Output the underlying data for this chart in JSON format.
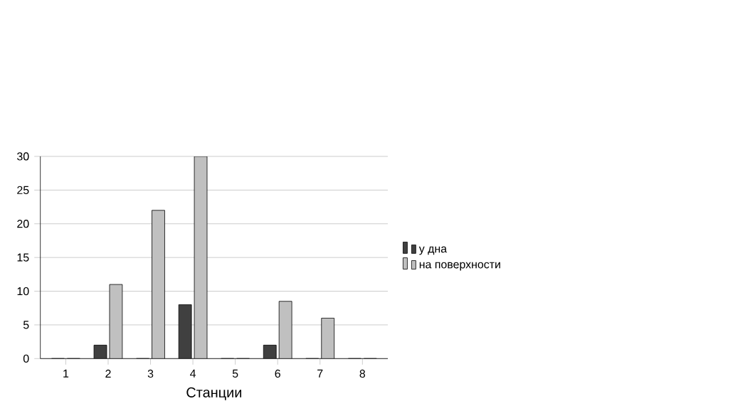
{
  "chart_data": {
    "type": "bar",
    "xlabel": "Станции",
    "categories": [
      "1",
      "2",
      "3",
      "4",
      "5",
      "6",
      "7",
      "8"
    ],
    "series": [
      {
        "name": "у дна",
        "color": "#404040",
        "values": [
          0,
          2,
          0,
          8,
          0,
          2,
          0,
          0
        ]
      },
      {
        "name": "на поверхности",
        "color": "#c0c0c0",
        "values": [
          0,
          11,
          22,
          30,
          0,
          8.5,
          6,
          0
        ]
      }
    ],
    "ylim": [
      0,
      30
    ],
    "yticks": [
      0,
      5,
      10,
      15,
      20,
      25,
      30
    ],
    "grid": "y",
    "legend": "right"
  }
}
